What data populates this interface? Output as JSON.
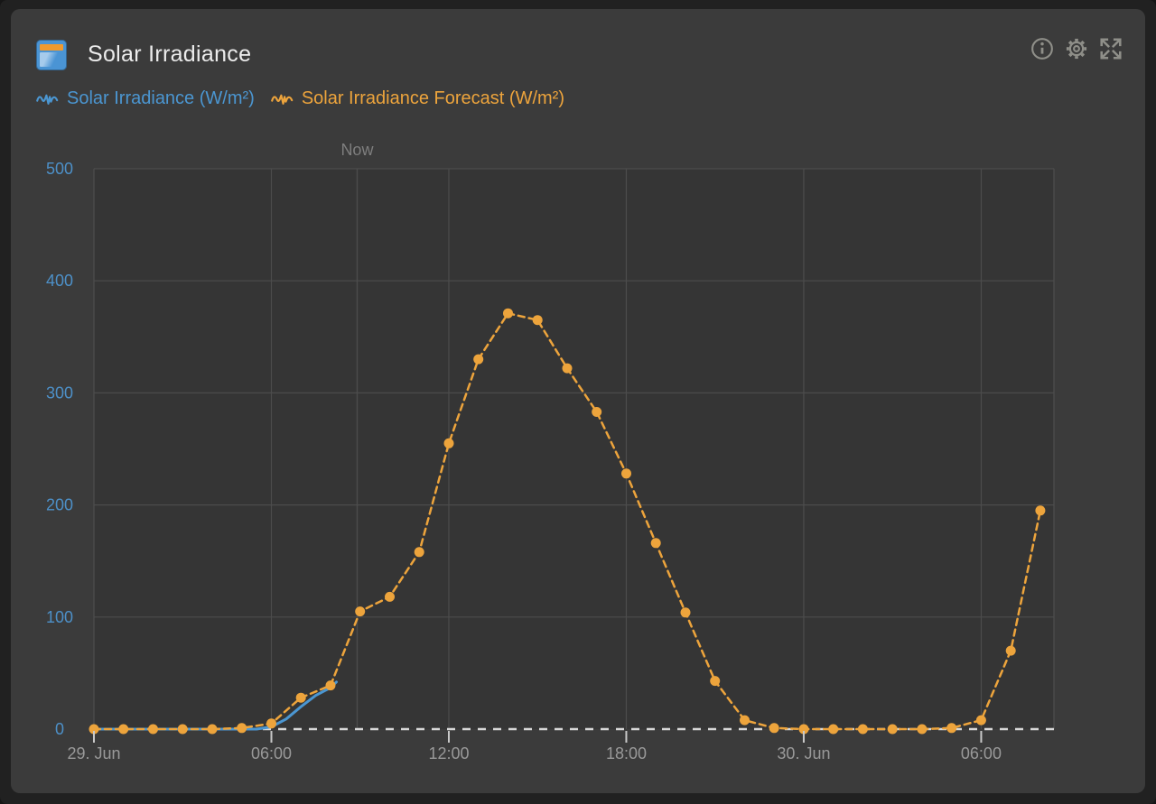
{
  "card": {
    "title": "Solar Irradiance",
    "header_icons": [
      "solar-panel-icon",
      "info-icon",
      "gear-icon",
      "expand-icon"
    ]
  },
  "legend": [
    {
      "label": "Solar Irradiance (W/m²)",
      "color": "#4b96d1"
    },
    {
      "label": "Solar Irradiance Forecast (W/m²)",
      "color": "#eda43c"
    }
  ],
  "colors": {
    "frame_bg": "#212121",
    "card_bg": "#3b3b3b",
    "plot_bg": "#353535",
    "grid": "#4c4c4c",
    "axis_label_blue": "#4d90c8",
    "x_label_gray": "#999999",
    "now_label_gray": "#7e7e7e",
    "zero_line": "#d8d8d8",
    "tick_mark": "#c9c9c9",
    "title_text": "#ececec",
    "header_icon": "#8f8f89",
    "accent_blue": "#4b96d1",
    "accent_orange": "#eda43c"
  },
  "chart_data": {
    "type": "line",
    "title": "Solar Irradiance",
    "ylabel": "W/m²",
    "grid": "on",
    "legend_position": "top-left",
    "y_axis": {
      "ticks": [
        0,
        100,
        200,
        300,
        400,
        500
      ],
      "range": [
        0,
        500
      ]
    },
    "x_axis": {
      "range_hours": [
        0,
        32.46
      ],
      "ticks": [
        {
          "hour": 0,
          "label": "29. Jun"
        },
        {
          "hour": 6,
          "label": "06:00"
        },
        {
          "hour": 12,
          "label": "12:00"
        },
        {
          "hour": 18,
          "label": "18:00"
        },
        {
          "hour": 24,
          "label": "30. Jun"
        },
        {
          "hour": 30,
          "label": "06:00"
        }
      ]
    },
    "now_marker": {
      "label": "Now",
      "hour": 8.9
    },
    "zero_line": {
      "value": 0,
      "style": "dashed",
      "color": "#d8d8d8"
    },
    "series": [
      {
        "name": "Solar Irradiance (W/m²)",
        "color": "#4b96d1",
        "line_style": "solid",
        "markers": false,
        "width": 3,
        "points": [
          [
            0,
            0
          ],
          [
            1,
            0
          ],
          [
            2,
            0
          ],
          [
            3,
            0
          ],
          [
            4,
            0
          ],
          [
            5,
            0
          ],
          [
            5.5,
            0
          ],
          [
            6,
            2
          ],
          [
            6.5,
            9
          ],
          [
            7,
            20
          ],
          [
            7.5,
            30
          ],
          [
            8,
            37
          ],
          [
            8.2,
            42
          ]
        ]
      },
      {
        "name": "Solar Irradiance Forecast (W/m²)",
        "color": "#eda43c",
        "line_style": "dashed",
        "markers": true,
        "width": 2.5,
        "points": [
          [
            0,
            0
          ],
          [
            1,
            0
          ],
          [
            2,
            0
          ],
          [
            3,
            0
          ],
          [
            4,
            0
          ],
          [
            5,
            1
          ],
          [
            6,
            5
          ],
          [
            7,
            28
          ],
          [
            8,
            39
          ],
          [
            9,
            105
          ],
          [
            10,
            118
          ],
          [
            11,
            158
          ],
          [
            12,
            255
          ],
          [
            13,
            330
          ],
          [
            14,
            371
          ],
          [
            15,
            365
          ],
          [
            16,
            322
          ],
          [
            17,
            283
          ],
          [
            18,
            228
          ],
          [
            19,
            166
          ],
          [
            20,
            104
          ],
          [
            21,
            43
          ],
          [
            22,
            8
          ],
          [
            23,
            1
          ],
          [
            24,
            0
          ],
          [
            25,
            0
          ],
          [
            26,
            0
          ],
          [
            27,
            0
          ],
          [
            28,
            0
          ],
          [
            29,
            1
          ],
          [
            30,
            8
          ],
          [
            31,
            70
          ],
          [
            32,
            195
          ]
        ]
      }
    ]
  }
}
